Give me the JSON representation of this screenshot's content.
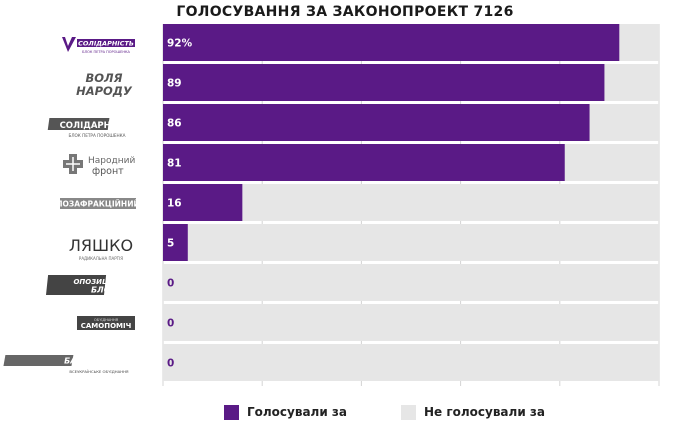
{
  "colors": {
    "for": "#5a1a86",
    "not_for": "#e6e6e6",
    "value_on_bar": "#ffffff",
    "value_off_bar": "#5a1a86",
    "title": "#1a1a1a"
  },
  "logos": {
    "bpp_text": "БЛОК ПЕТРА ПОРОШЕНКА",
    "bpp_sub": "СОЛІДАРНІСТЬ",
    "volya_line1": "ВОЛЯ",
    "volya_line2": "НАРОДУ",
    "solid_line1": "СОЛІДАРНІСТЬ",
    "solid_line2": "БЛОК ПЕТРА ПОРОШЕНКА",
    "nf_line1": "Народний",
    "nf_line2": "фронт",
    "pozafr": "ПОЗАФРАКЦІЙНИЙ",
    "lyashko": "ЛЯШКО",
    "lyashko_sub": "РАДИКАЛЬНА ПАРТІЯ",
    "opobloc_line1": "ОПОЗИЦІЙНИЙ",
    "opobloc_line2": "БЛОК",
    "samopomich_top": "ОБ'ЄДНАННЯ",
    "samopomich": "САМОПОМІЧ",
    "batk": "БАТЬКІВЩИНА",
    "batk_sub": "ВСЕУКРАЇНСЬКЕ ОБ'ЄДНАННЯ"
  },
  "chart_data": {
    "type": "bar",
    "orientation": "horizontal",
    "stacked": true,
    "title": "ГОЛОСУВАННЯ ЗА ЗАКОНОПРОЕКТ 7126",
    "categories": [
      "Блок Петра Порошенка",
      "Воля народу",
      "Солідарність",
      "Народний фронт",
      "Позафракційний",
      "Радикальна партія Ляшка",
      "Опозиційний блок",
      "Самопоміч",
      "Батьківщина"
    ],
    "series": [
      {
        "name": "Голосували за",
        "values": [
          92,
          89,
          86,
          81,
          16,
          5,
          0,
          0,
          0
        ]
      },
      {
        "name": "Не голосували за",
        "values": [
          8,
          11,
          14,
          19,
          84,
          95,
          100,
          100,
          100
        ]
      }
    ],
    "value_labels": [
      "92%",
      "89",
      "86",
      "81",
      "16",
      "5",
      "0",
      "0",
      "0"
    ],
    "xlim": [
      0,
      100
    ],
    "grid": true,
    "legend": "bottom"
  },
  "legend": {
    "for_label": "Голосували за",
    "not_label": "Не голосували за"
  }
}
